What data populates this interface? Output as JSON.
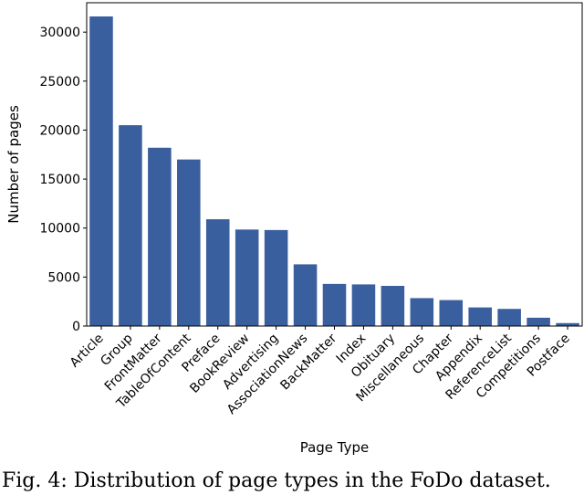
{
  "chart_data": {
    "type": "bar",
    "categories": [
      "Article",
      "Group",
      "FrontMatter",
      "TableOfContent",
      "Preface",
      "BookReview",
      "Advertising",
      "AssociationNews",
      "BackMatter",
      "Index",
      "Obituary",
      "Miscellaneous",
      "Chapter",
      "Appendix",
      "ReferenceList",
      "Competitions",
      "Postface"
    ],
    "values": [
      31600,
      20500,
      18200,
      17000,
      10900,
      9850,
      9800,
      6300,
      4300,
      4250,
      4100,
      2850,
      2650,
      1900,
      1750,
      850,
      300
    ],
    "xlabel": "Page Type",
    "ylabel": "Number of pages",
    "ylim": [
      0,
      33000
    ],
    "yticks": [
      0,
      5000,
      10000,
      15000,
      20000,
      25000,
      30000
    ],
    "bar_color": "#3a5f9f",
    "grid": false
  },
  "caption": "Fig. 4: Distribution of page types in the FoDo dataset."
}
